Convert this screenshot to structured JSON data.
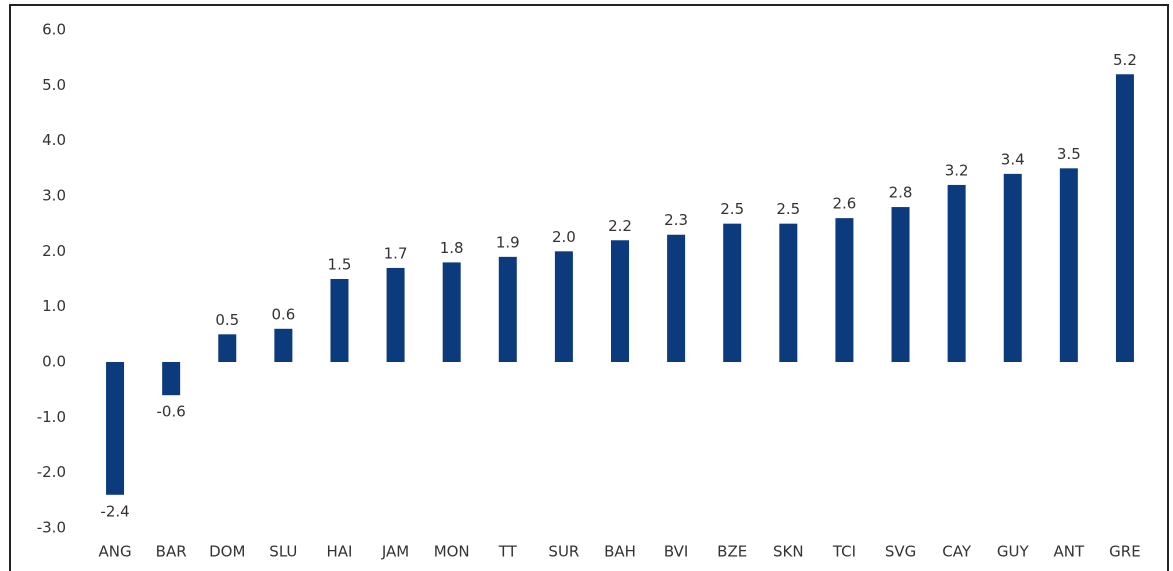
{
  "chart_data": {
    "type": "bar",
    "categories": [
      "ANG",
      "BAR",
      "DOM",
      "SLU",
      "HAI",
      "JAM",
      "MON",
      "TT",
      "SUR",
      "BAH",
      "BVI",
      "BZE",
      "SKN",
      "TCI",
      "SVG",
      "CAY",
      "GUY",
      "ANT",
      "GRE"
    ],
    "values": [
      -2.4,
      -0.6,
      0.5,
      0.6,
      1.5,
      1.7,
      1.8,
      1.9,
      2.0,
      2.2,
      2.3,
      2.5,
      2.5,
      2.6,
      2.8,
      3.2,
      3.4,
      3.5,
      5.2
    ],
    "value_labels": [
      "-2.4",
      "-0.6",
      "0.5",
      "0.6",
      "1.5",
      "1.7",
      "1.8",
      "1.9",
      "2.0",
      "2.2",
      "2.3",
      "2.5",
      "2.5",
      "2.6",
      "2.8",
      "3.2",
      "3.4",
      "3.5",
      "5.2"
    ],
    "color": "#0b3b7c",
    "ylim": [
      -3,
      6
    ],
    "yticks": [
      {
        "value": -3,
        "label": "-3.0"
      },
      {
        "value": -2,
        "label": "-2.0"
      },
      {
        "value": -1,
        "label": "-1.0"
      },
      {
        "value": 0,
        "label": "0.0"
      },
      {
        "value": 1,
        "label": "1.0"
      },
      {
        "value": 2,
        "label": "2.0"
      },
      {
        "value": 3,
        "label": "3.0"
      },
      {
        "value": 4,
        "label": "4.0"
      },
      {
        "value": 5,
        "label": "5.0"
      },
      {
        "value": 6,
        "label": "6.0"
      }
    ],
    "grid": false
  }
}
